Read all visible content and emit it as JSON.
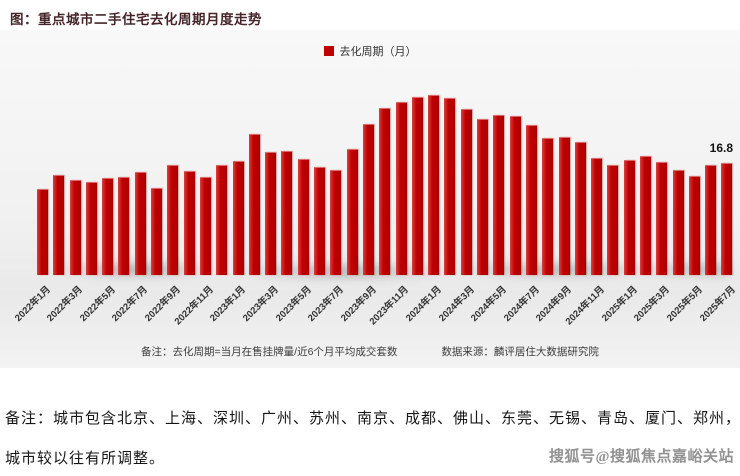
{
  "page": {
    "title": "图：重点城市二手住宅去化周期月度走势",
    "footer_note_line1": "备注：城市包含北京、上海、深圳、广州、苏州、南京、成都、佛山、东莞、无锡、青岛、厦门、郑州，",
    "footer_note_line2": "城市较以往有所调整。",
    "watermark": "搜狐号@搜狐焦点嘉峪关站"
  },
  "chart": {
    "legend_label": "去化周期（月）",
    "note": "备注：去化周期=当月在售挂牌量/近6个月平均成交套数",
    "source": "数据来源：麟评居住大数据研究院",
    "last_value_label": "16.8",
    "bar_color": "#c00000"
  },
  "chart_data": {
    "type": "bar",
    "title": "重点城市二手住宅去化周期月度走势",
    "series_name": "去化周期（月）",
    "categories": [
      "2022年1月",
      "2022年2月",
      "2022年3月",
      "2022年4月",
      "2022年5月",
      "2022年6月",
      "2022年7月",
      "2022年8月",
      "2022年9月",
      "2022年10月",
      "2022年11月",
      "2022年12月",
      "2023年1月",
      "2023年2月",
      "2023年3月",
      "2023年4月",
      "2023年5月",
      "2023年6月",
      "2023年7月",
      "2023年8月",
      "2023年9月",
      "2023年10月",
      "2023年11月",
      "2023年12月",
      "2024年1月",
      "2024年2月",
      "2024年3月",
      "2024年4月",
      "2024年5月",
      "2024年6月",
      "2024年7月",
      "2024年8月",
      "2024年9月",
      "2024年10月",
      "2024年11月",
      "2024年12月",
      "2025年1月",
      "2025年2月",
      "2025年3月",
      "2025年4月",
      "2025年5月",
      "2025年6月",
      "2025年7月"
    ],
    "values": [
      12.9,
      15.0,
      14.2,
      13.9,
      14.5,
      14.7,
      15.4,
      13.0,
      16.5,
      15.6,
      14.7,
      16.5,
      17.1,
      21.2,
      18.5,
      18.6,
      17.4,
      16.2,
      15.7,
      18.9,
      22.7,
      25.1,
      26.0,
      26.8,
      27.2,
      26.6,
      25.0,
      23.5,
      24.1,
      23.9,
      22.6,
      20.6,
      20.7,
      20.0,
      17.6,
      16.5,
      17.3,
      17.9,
      17.0,
      15.7,
      14.8,
      16.5,
      16.8
    ],
    "ylim": [
      0,
      30
    ],
    "y_axis_visible": false,
    "grid": false,
    "legend_position": "top-center",
    "x_label_every": 2,
    "x_label_rotation_deg": 45,
    "data_labels": {
      "2025年7月": 16.8
    }
  }
}
